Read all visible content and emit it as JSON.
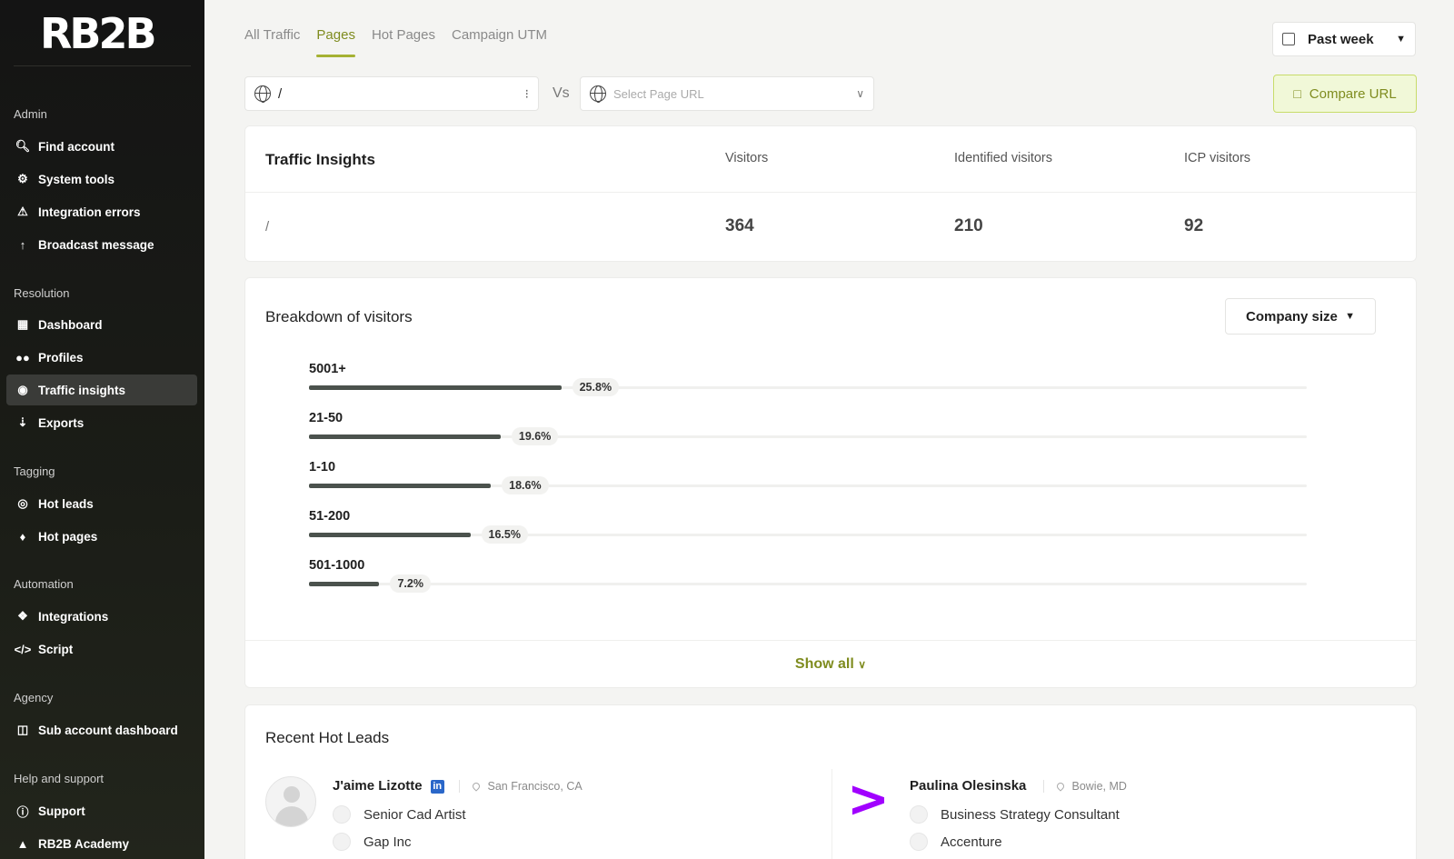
{
  "brand": {
    "logo_text": "RB2B"
  },
  "sidebar": {
    "sections": [
      {
        "title": "Admin",
        "items": [
          {
            "label": "Find account",
            "icon": "search-icon"
          },
          {
            "label": "System tools",
            "icon": "gear-icon"
          },
          {
            "label": "Integration errors",
            "icon": "warning-image-icon"
          },
          {
            "label": "Broadcast message",
            "icon": "antenna-icon"
          }
        ]
      },
      {
        "title": "Resolution",
        "items": [
          {
            "label": "Dashboard",
            "icon": "dashboard-icon"
          },
          {
            "label": "Profiles",
            "icon": "users-icon"
          },
          {
            "label": "Traffic insights",
            "icon": "globe-icon",
            "active": true
          },
          {
            "label": "Exports",
            "icon": "export-icon"
          }
        ]
      },
      {
        "title": "Tagging",
        "items": [
          {
            "label": "Hot leads",
            "icon": "target-icon"
          },
          {
            "label": "Hot pages",
            "icon": "flame-icon"
          }
        ]
      },
      {
        "title": "Automation",
        "items": [
          {
            "label": "Integrations",
            "icon": "puzzle-icon"
          },
          {
            "label": "Script",
            "icon": "code-icon"
          }
        ]
      },
      {
        "title": "Agency",
        "items": [
          {
            "label": "Sub account dashboard",
            "icon": "sitemap-icon"
          }
        ]
      },
      {
        "title": "Help and support",
        "items": [
          {
            "label": "Support",
            "icon": "help-icon"
          },
          {
            "label": "RB2B Academy",
            "icon": "graduation-icon"
          }
        ]
      }
    ]
  },
  "tabs": [
    "All Traffic",
    "Pages",
    "Hot Pages",
    "Campaign UTM"
  ],
  "active_tab": "Pages",
  "date_range": "Past week",
  "url_input": {
    "value": "/"
  },
  "vs_label": "Vs",
  "url_select": {
    "placeholder": "Select Page URL"
  },
  "compare_button": "Compare URL",
  "traffic_insights": {
    "title": "Traffic Insights",
    "headers": [
      "Visitors",
      "Identified visitors",
      "ICP visitors"
    ],
    "row": {
      "label": "/",
      "values": [
        "364",
        "210",
        "92"
      ]
    }
  },
  "breakdown": {
    "title": "Breakdown of visitors",
    "filter": "Company size",
    "show_all": "Show all",
    "bars": [
      {
        "label": "5001+",
        "pct_label": "25.8%",
        "value": 25.8
      },
      {
        "label": "21-50",
        "pct_label": "19.6%",
        "value": 19.6
      },
      {
        "label": "1-10",
        "pct_label": "18.6%",
        "value": 18.6
      },
      {
        "label": "51-200",
        "pct_label": "16.5%",
        "value": 16.5
      },
      {
        "label": "501-1000",
        "pct_label": "7.2%",
        "value": 7.2
      }
    ]
  },
  "hot_leads": {
    "title": "Recent Hot Leads",
    "leads": [
      {
        "name": "J'aime Lizotte",
        "linkedin": "in",
        "location": "San Francisco, CA",
        "title": "Senior Cad Artist",
        "company": "Gap Inc"
      },
      {
        "name": "Paulina Olesinska",
        "location": "Bowie, MD",
        "title": "Business Strategy Consultant",
        "company": "Accenture",
        "logo": ">"
      }
    ]
  },
  "colors": {
    "accent": "#7f8c1f",
    "sidebar_bg": "#141414",
    "bar": "#4b524d",
    "accenture": "#a100ff"
  }
}
